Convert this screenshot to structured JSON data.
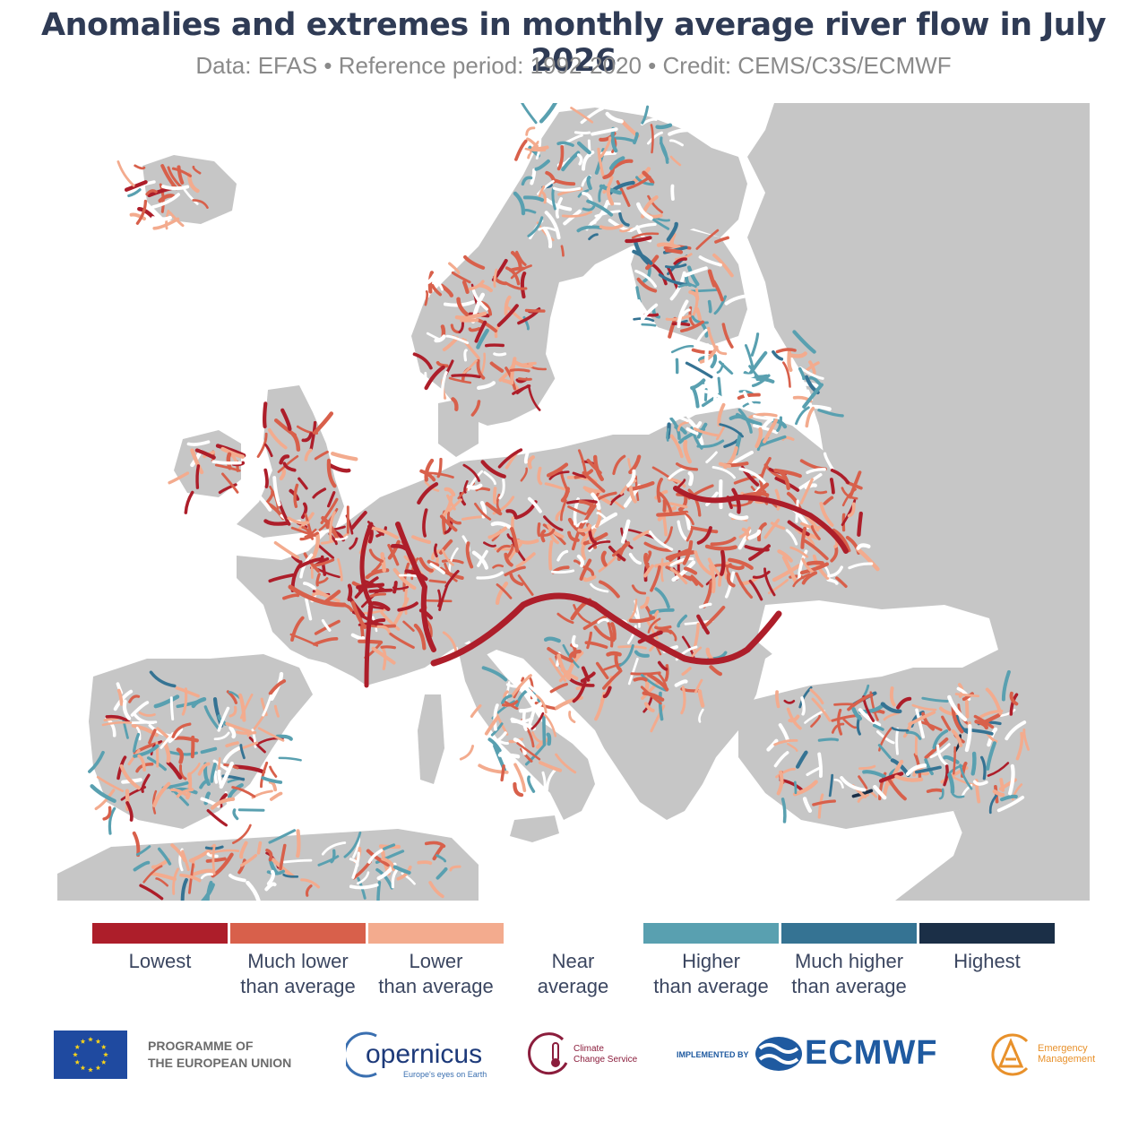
{
  "header": {
    "title": "Anomalies and extremes in monthly average river flow in July 2026",
    "subtitle": "Data: EFAS • Reference period: 1992-2020 • Credit: CEMS/C3S/ECMWF"
  },
  "map": {
    "colors": {
      "sea": "#ffffff",
      "land": "#c6c6c6",
      "lowest": "#ad1e2a",
      "much_lower": "#d8604b",
      "lower": "#f3ab8e",
      "near": "#ffffff",
      "higher": "#59a0b0",
      "much_higher": "#357393",
      "highest": "#1b2f47"
    }
  },
  "legend": {
    "items": [
      {
        "line1": "Lowest",
        "line2": "",
        "color": "#ad1e2a"
      },
      {
        "line1": "Much lower",
        "line2": "than average",
        "color": "#d8604b"
      },
      {
        "line1": "Lower",
        "line2": "than average",
        "color": "#f3ab8e"
      },
      {
        "line1": "Near",
        "line2": "average",
        "color": "#ffffff"
      },
      {
        "line1": "Higher",
        "line2": "than average",
        "color": "#59a0b0"
      },
      {
        "line1": "Much higher",
        "line2": "than average",
        "color": "#357393"
      },
      {
        "line1": "Highest",
        "line2": "",
        "color": "#1b2f47"
      }
    ]
  },
  "logos": {
    "eu_line1": "PROGRAMME OF",
    "eu_line2": "THE EUROPEAN UNION",
    "copernicus_word": "opernicus",
    "copernicus_tagline": "Europe's eyes on Earth",
    "c3s_line1": "Climate",
    "c3s_line2": "Change Service",
    "implemented_by": "IMPLEMENTED BY",
    "ecmwf_word": "ECMWF",
    "em_line1": "Emergency",
    "em_line2": "Management"
  }
}
